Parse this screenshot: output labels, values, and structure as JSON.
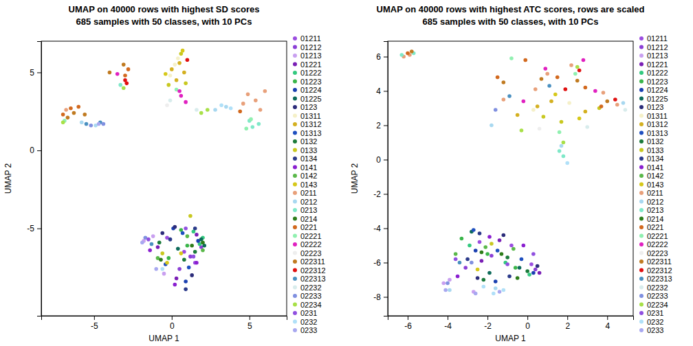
{
  "chart_data": [
    {
      "type": "scatter",
      "title": "UMAP on 40000 rows with highest SD scores",
      "subtitle": "685 samples with 50 classes, with 10 PCs",
      "x_label": "UMAP 1",
      "y_label": "UMAP 2",
      "xlim": [
        -8.4,
        7.4
      ],
      "ylim": [
        -10.6,
        7.0
      ],
      "xticks": [
        -5,
        0,
        5
      ],
      "yticks": [
        -5,
        0,
        5
      ],
      "legend": "right",
      "series": [
        {
          "name": "01211",
          "color": "#9b4de0",
          "x": [
            0.8,
            1.5,
            -0.3
          ],
          "y": [
            -6.5,
            -7.2,
            -5.6
          ]
        },
        {
          "name": "01212",
          "color": "#8b3fd6",
          "x": [
            1.2,
            0.5,
            1.9
          ],
          "y": [
            -6.8,
            -7.6,
            -6.2
          ]
        },
        {
          "name": "01213",
          "color": "#c9a0f0",
          "x": [
            -1.8,
            -1.2,
            -0.5
          ],
          "y": [
            -5.8,
            -5.5,
            -7.9
          ]
        },
        {
          "name": "01221",
          "color": "#7a1fb5",
          "x": [
            0.3,
            1.6,
            -0.9
          ],
          "y": [
            -8.2,
            -5.4,
            -6.2
          ]
        },
        {
          "name": "01222",
          "color": "#33c97f",
          "x": [
            1.8,
            1.4,
            2.0
          ],
          "y": [
            -6.0,
            -5.2,
            -5.6
          ]
        },
        {
          "name": "01223",
          "color": "#3ab54a",
          "x": [
            -0.2,
            0.6,
            1.0
          ],
          "y": [
            -6.9,
            -5.1,
            -6.1
          ]
        },
        {
          "name": "01224",
          "color": "#1a3fb0",
          "x": [
            0.1,
            0.9,
            1.7
          ],
          "y": [
            -5.0,
            -8.4,
            -5.8
          ]
        },
        {
          "name": "01225",
          "color": "#0e6b5a",
          "x": [
            1.9,
            2.1,
            0.4
          ],
          "y": [
            -5.7,
            -6.1,
            -6.3
          ]
        },
        {
          "name": "0123",
          "color": "#2c2c7a",
          "x": [
            -0.6,
            0.2,
            1.3
          ],
          "y": [
            -5.3,
            -4.9,
            -8.0
          ]
        },
        {
          "name": "01311",
          "color": "#f5f0c8",
          "x": [
            0.2,
            -0.1,
            0.4
          ],
          "y": [
            5.5,
            4.8,
            5.9
          ]
        },
        {
          "name": "01312",
          "color": "#d4b020",
          "x": [
            0.5,
            0.0,
            0.8,
            0.3
          ],
          "y": [
            5.6,
            5.2,
            5.0,
            4.5
          ]
        },
        {
          "name": "01313",
          "color": "#1f4fbf",
          "x": [
            0.7,
            -0.4,
            1.1
          ],
          "y": [
            -5.3,
            -7.3,
            -7.5
          ]
        },
        {
          "name": "0132",
          "color": "#1b7a3a",
          "x": [
            1.5,
            -0.8,
            0.8
          ],
          "y": [
            -6.5,
            -5.9,
            -7.0
          ]
        },
        {
          "name": "0133",
          "color": "#c8c820",
          "x": [
            -0.2,
            0.6,
            0.9,
            1.2,
            -0.6
          ],
          "y": [
            4.2,
            6.2,
            4.3,
            -4.2,
            -6.6
          ]
        },
        {
          "name": "0134",
          "color": "#2b3a8a",
          "x": [
            -0.1,
            0.9,
            1.5
          ],
          "y": [
            -5.7,
            -8.9,
            -5.0
          ]
        },
        {
          "name": "0141",
          "color": "#8a1fd0",
          "x": [
            1.6,
            -1.4,
            0.2
          ],
          "y": [
            -7.2,
            -6.4,
            -8.6
          ]
        },
        {
          "name": "0142",
          "color": "#5ab84a",
          "x": [
            2.0,
            -0.9,
            1.0
          ],
          "y": [
            -6.4,
            -6.9,
            -5.5
          ]
        },
        {
          "name": "0143",
          "color": "#d6c81a",
          "x": [
            0.7,
            -0.4,
            -0.3,
            0.6
          ],
          "y": [
            6.4,
            4.9,
            -7.2,
            -6.6
          ]
        },
        {
          "name": "0211",
          "color": "#e8a07a",
          "x": [
            4.9,
            5.4,
            6.0,
            5.7,
            4.6,
            -6.8
          ],
          "y": [
            3.6,
            3.2,
            3.8,
            2.6,
            3.0,
            2.6
          ]
        },
        {
          "name": "0212",
          "color": "#a8d8f0",
          "x": [
            -5.8,
            -4.9,
            3.5,
            2.8
          ],
          "y": [
            1.8,
            1.6,
            2.8,
            2.6
          ]
        },
        {
          "name": "0213",
          "color": "#7fe8c8",
          "x": [
            5.2,
            5.0,
            5.6,
            -3.3
          ],
          "y": [
            1.5,
            1.9,
            1.7,
            4.2
          ]
        },
        {
          "name": "0214",
          "color": "#2e7d1a",
          "x": [
            2.0,
            -0.7,
            1.3
          ],
          "y": [
            -5.9,
            -7.0,
            -6.1
          ]
        },
        {
          "name": "0221",
          "color": "#d2691e",
          "x": [
            -6.5,
            -6.0,
            -7.0,
            -2.8,
            -3.0,
            4.4
          ],
          "y": [
            2.7,
            2.8,
            2.3,
            5.2,
            4.8,
            2.5
          ]
        },
        {
          "name": "02221",
          "color": "#90f0b0",
          "x": [
            5.1,
            4.8,
            0.3,
            -6.9
          ],
          "y": [
            2.0,
            1.4,
            3.9,
            1.9
          ]
        },
        {
          "name": "02222",
          "color": "#e020c0",
          "x": [
            0.6,
            0.9,
            0.5,
            -3.5
          ],
          "y": [
            3.5,
            3.1,
            3.8,
            4.9
          ]
        },
        {
          "name": "02223",
          "color": "#eeeeee",
          "x": [
            -0.3
          ],
          "y": [
            2.9
          ]
        },
        {
          "name": "022311",
          "color": "#c07a20",
          "x": [
            -6.3,
            -6.7,
            -5.6,
            -3.1,
            -4.0
          ],
          "y": [
            2.4,
            2.1,
            2.3,
            5.5,
            5.0
          ]
        },
        {
          "name": "022312",
          "color": "#e01010",
          "x": [
            -3.0,
            -2.9,
            1.0
          ],
          "y": [
            4.5,
            4.3,
            5.8
          ]
        },
        {
          "name": "022313",
          "color": "#4a90c0",
          "x": [
            -5.5,
            -4.6,
            -1.3
          ],
          "y": [
            1.7,
            1.8,
            -6.0
          ]
        },
        {
          "name": "02232",
          "color": "#d8ecec",
          "x": [
            -0.1,
            1.6
          ],
          "y": [
            3.2,
            2.6
          ]
        },
        {
          "name": "02233",
          "color": "#8090e0",
          "x": [
            -5.2,
            -4.4,
            -1.7
          ],
          "y": [
            1.6,
            1.7,
            -5.6
          ]
        },
        {
          "name": "02234",
          "color": "#a8e048",
          "x": [
            1.9,
            2.3,
            -3.1,
            -7.0
          ],
          "y": [
            2.4,
            2.6,
            4.0,
            1.8
          ]
        },
        {
          "name": "0231",
          "color": "#9050e0",
          "x": [
            -1.5,
            1.4,
            0.9
          ],
          "y": [
            -5.7,
            -6.8,
            -5.0
          ]
        },
        {
          "name": "0232",
          "color": "#b0e0f8",
          "x": [
            3.8,
            3.2,
            -0.6
          ],
          "y": [
            2.7,
            2.9,
            -7.6
          ]
        },
        {
          "name": "0233",
          "color": "#a8a8f0",
          "x": [
            -4.7,
            -1.9,
            -1.0
          ],
          "y": [
            1.7,
            -5.9,
            -7.6
          ]
        }
      ]
    },
    {
      "type": "scatter",
      "title": "UMAP on 40000 rows with highest ATC scores, rows are scaled",
      "subtitle": "685 samples with 50 classes, with 10 PCs",
      "x_label": "UMAP 1",
      "y_label": "UMAP 2",
      "xlim": [
        -7.0,
        5.3
      ],
      "ylim": [
        -9.1,
        6.9
      ],
      "xticks": [
        -6,
        -4,
        -2,
        0,
        2,
        4
      ],
      "yticks": [
        -8,
        -6,
        -4,
        -2,
        0,
        2,
        4,
        6
      ],
      "legend": "right",
      "series": [
        {
          "name": "01211",
          "color": "#9b4de0",
          "x": [
            -0.8,
            0.2,
            -2.4
          ],
          "y": [
            -5.0,
            -6.1,
            -4.8
          ]
        },
        {
          "name": "01212",
          "color": "#8b3fd6",
          "x": [
            -1.8,
            -3.1,
            0.4
          ],
          "y": [
            -5.6,
            -6.3,
            -6.4
          ]
        },
        {
          "name": "01213",
          "color": "#c9a0f0",
          "x": [
            -4.2,
            -2.7,
            -3.9
          ],
          "y": [
            -7.2,
            -7.7,
            -7.0
          ]
        },
        {
          "name": "01221",
          "color": "#7a1fb5",
          "x": [
            -2.3,
            0.6,
            -1.4
          ],
          "y": [
            -5.9,
            -6.6,
            -4.7
          ]
        },
        {
          "name": "01222",
          "color": "#33c97f",
          "x": [
            -1.1,
            -2.9,
            0.1
          ],
          "y": [
            -6.0,
            -5.0,
            -6.7
          ]
        },
        {
          "name": "01223",
          "color": "#3ab54a",
          "x": [
            -0.6,
            -2.0,
            -3.3
          ],
          "y": [
            -6.3,
            -5.5,
            -4.6
          ]
        },
        {
          "name": "01224",
          "color": "#1a3fb0",
          "x": [
            0.3,
            -2.6,
            -1.6
          ],
          "y": [
            -6.6,
            -5.3,
            -7.1
          ]
        },
        {
          "name": "01225",
          "color": "#0e6b5a",
          "x": [
            -0.4,
            -1.9,
            -2.8
          ],
          "y": [
            -6.3,
            -6.6,
            -4.2
          ]
        },
        {
          "name": "0123",
          "color": "#2c2c7a",
          "x": [
            -2.5,
            0.5,
            -1.2
          ],
          "y": [
            -6.9,
            -6.2,
            -4.4
          ]
        },
        {
          "name": "01311",
          "color": "#f5f0c8",
          "x": [
            2.1,
            0.3
          ],
          "y": [
            3.3,
            2.9
          ]
        },
        {
          "name": "01312",
          "color": "#d4b020",
          "x": [
            0.5,
            1.2,
            2.9,
            -0.5
          ],
          "y": [
            3.1,
            3.4,
            2.8,
            2.6
          ]
        },
        {
          "name": "01313",
          "color": "#1f4fbf",
          "x": [
            -2.7,
            -1.5,
            -0.3
          ],
          "y": [
            -4.1,
            -5.3,
            -5.8
          ]
        },
        {
          "name": "0132",
          "color": "#1b7a3a",
          "x": [
            -1.0,
            -2.2,
            0.0
          ],
          "y": [
            -5.7,
            -7.0,
            -6.5
          ]
        },
        {
          "name": "0133",
          "color": "#c8c820",
          "x": [
            0.8,
            1.7,
            3.6,
            -1.8
          ],
          "y": [
            2.5,
            2.2,
            3.0,
            -4.9
          ]
        },
        {
          "name": "0134",
          "color": "#2b3a8a",
          "x": [
            -3.0,
            -0.9,
            -2.4
          ],
          "y": [
            -5.8,
            -6.8,
            -4.3
          ]
        },
        {
          "name": "0141",
          "color": "#8a1fd0",
          "x": [
            -1.9,
            -3.5,
            -0.2
          ],
          "y": [
            -4.5,
            -6.8,
            -5.0
          ]
        },
        {
          "name": "0142",
          "color": "#5ab84a",
          "x": [
            -2.1,
            -0.7,
            -3.6
          ],
          "y": [
            -5.1,
            -5.2,
            -5.5
          ]
        },
        {
          "name": "0143",
          "color": "#d6c81a",
          "x": [
            1.4,
            2.6,
            -2.5
          ],
          "y": [
            3.8,
            2.4,
            -6.4
          ]
        },
        {
          "name": "0211",
          "color": "#e8a07a",
          "x": [
            2.2,
            3.8,
            1.0,
            4.5,
            -1.2,
            0.4,
            -5.9,
            -6.2
          ],
          "y": [
            5.5,
            3.9,
            5.0,
            3.2,
            3.5,
            4.1,
            6.1,
            6.0
          ]
        },
        {
          "name": "0212",
          "color": "#a8d8f0",
          "x": [
            4.8,
            -1.8,
            1.7,
            -1.6,
            -3.9
          ],
          "y": [
            3.3,
            2.0,
            0.8,
            -7.5,
            -7.6
          ]
        },
        {
          "name": "0213",
          "color": "#7fe8c8",
          "x": [
            -6.3,
            -5.7,
            1.8,
            1.6
          ],
          "y": [
            6.1,
            6.2,
            0.2,
            0.5
          ]
        },
        {
          "name": "0214",
          "color": "#2e7d1a",
          "x": [
            -0.5,
            -2.3,
            -1.3
          ],
          "y": [
            -6.9,
            -5.4,
            -5.5
          ]
        },
        {
          "name": "0221",
          "color": "#d2691e",
          "x": [
            -0.1,
            2.9,
            3.7,
            1.5,
            -1.5,
            -6.0
          ],
          "y": [
            5.8,
            4.2,
            3.1,
            4.8,
            4.8,
            6.2
          ]
        },
        {
          "name": "02221",
          "color": "#90f0b0",
          "x": [
            -0.8,
            2.4,
            1.6
          ],
          "y": [
            5.9,
            5.0,
            1.6
          ]
        },
        {
          "name": "02222",
          "color": "#e020c0",
          "x": [
            0.9,
            2.8,
            -0.2,
            3.4
          ],
          "y": [
            5.3,
            5.8,
            3.4,
            4.0
          ]
        },
        {
          "name": "02223",
          "color": "#eeeeee",
          "x": [
            0.6
          ],
          "y": [
            1.8
          ]
        },
        {
          "name": "022311",
          "color": "#c07a20",
          "x": [
            -1.2,
            4.0,
            0.7,
            2.5,
            -5.8
          ],
          "y": [
            4.5,
            3.4,
            4.7,
            4.6,
            6.3
          ]
        },
        {
          "name": "022312",
          "color": "#e01010",
          "x": [
            2.6,
            1.9,
            4.4
          ],
          "y": [
            5.2,
            4.1,
            3.5
          ]
        },
        {
          "name": "022313",
          "color": "#4a90c0",
          "x": [
            -0.9,
            1.1,
            -3.4
          ],
          "y": [
            3.7,
            4.3,
            -6.0
          ]
        },
        {
          "name": "02232",
          "color": "#d8ecec",
          "x": [
            3.0,
            4.9
          ],
          "y": [
            1.9,
            2.9
          ]
        },
        {
          "name": "02233",
          "color": "#8090e0",
          "x": [
            -1.6,
            -4.0,
            -2.8
          ],
          "y": [
            2.9,
            -7.2,
            -6.0
          ]
        },
        {
          "name": "02234",
          "color": "#a8e048",
          "x": [
            1.8,
            -0.3,
            2.5
          ],
          "y": [
            1.0,
            1.7,
            5.4
          ]
        },
        {
          "name": "0231",
          "color": "#9050e0",
          "x": [
            -1.0,
            -3.6,
            0.3
          ],
          "y": [
            -6.1,
            -5.8,
            -5.5
          ]
        },
        {
          "name": "0232",
          "color": "#b0e0f8",
          "x": [
            -1.7,
            -1.2,
            -2.2,
            2.0
          ],
          "y": [
            -7.8,
            -7.6,
            -7.4,
            -0.2
          ]
        },
        {
          "name": "0233",
          "color": "#a8a8f0",
          "x": [
            -4.1,
            -2.6,
            -1.4
          ],
          "y": [
            -7.6,
            -7.8,
            -7.7
          ]
        }
      ]
    }
  ]
}
